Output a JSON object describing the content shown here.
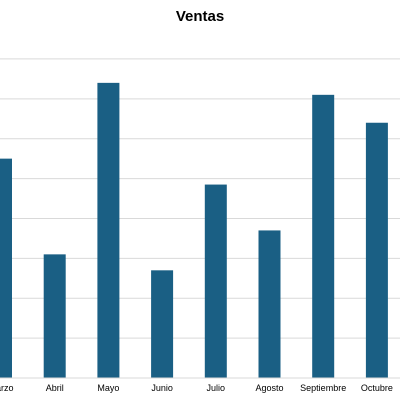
{
  "chart_data": {
    "type": "bar",
    "title": "Ventas",
    "categories": [
      "Marzo",
      "Abril",
      "Mayo",
      "Junio",
      "Julio",
      "Agosto",
      "Septiembre",
      "Octubre"
    ],
    "values": [
      550,
      310,
      740,
      270,
      485,
      370,
      710,
      640
    ],
    "ylim": [
      0,
      860
    ],
    "grid": true,
    "bar_color": "#1a5f84",
    "grid_color": "#d9d9d9",
    "legend": "none"
  }
}
